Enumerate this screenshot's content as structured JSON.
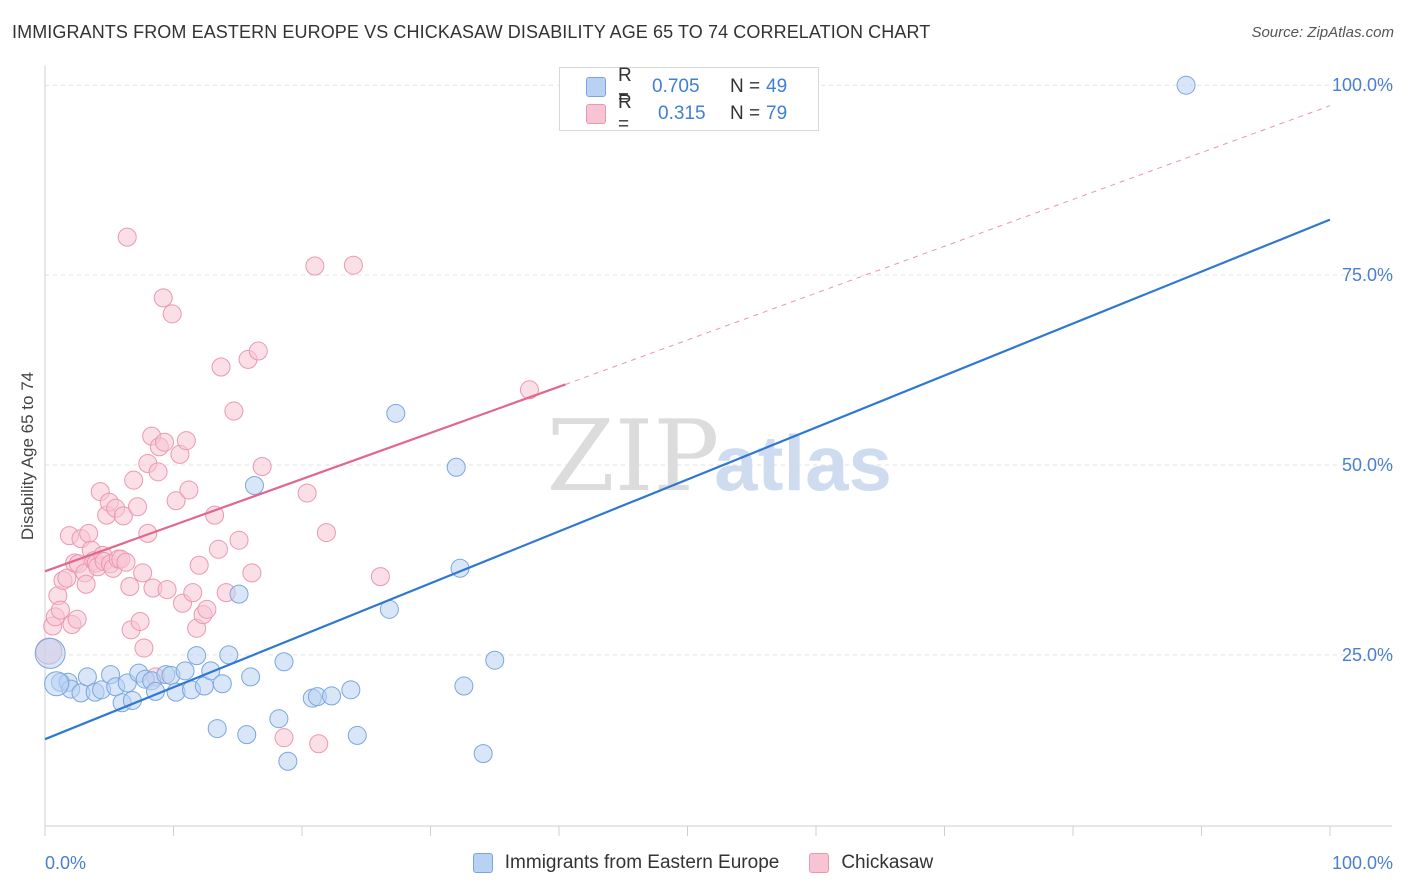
{
  "title": "IMMIGRANTS FROM EASTERN EUROPE VS CHICKASAW DISABILITY AGE 65 TO 74 CORRELATION CHART",
  "source": "Source: ZipAtlas.com",
  "watermark": {
    "zip": "ZIP",
    "atlas": "atlas"
  },
  "colors": {
    "blue_fill": "#b9d2f3",
    "blue_stroke": "#7aa6df",
    "blue_line": "#2f78d2",
    "pink_fill": "#f8c4d3",
    "pink_stroke": "#ec97b1",
    "pink_line": "#e16690",
    "axis_text": "#4a7fd0",
    "grid": "#e2e2e2"
  },
  "legend_top": [
    {
      "r_label": "R =",
      "r_value": "0.705",
      "n_label": "N =",
      "n_value": "49"
    },
    {
      "r_label": "R =",
      "r_value": "0.315",
      "n_label": "N =",
      "n_value": "79"
    }
  ],
  "chart_data": {
    "type": "scatter",
    "xlabel": "",
    "ylabel": "Disability Age 65 to 74",
    "xlim": [
      0,
      100
    ],
    "ylim": [
      3,
      102
    ],
    "x_tick_labels": [
      "0.0%",
      "100.0%"
    ],
    "y_tick_labels": [
      {
        "value": 100,
        "label": "100.0%"
      },
      {
        "value": 75,
        "label": "75.0%"
      },
      {
        "value": 50,
        "label": "50.0%"
      },
      {
        "value": 25,
        "label": "25.0%"
      }
    ],
    "grid": true,
    "legend_position": "bottom-center",
    "series": [
      {
        "name": "Immigrants from Eastern Europe",
        "color": "#b9d2f3",
        "r": 0.705,
        "n": 49,
        "trend": {
          "x": [
            0,
            100
          ],
          "y": [
            13.9,
            82.3
          ],
          "style": "solid"
        },
        "points": [
          [
            0.4,
            25.2
          ],
          [
            1.2,
            21.4
          ],
          [
            1.8,
            21.4
          ],
          [
            2.0,
            20.5
          ],
          [
            2.8,
            20.0
          ],
          [
            3.3,
            22.1
          ],
          [
            3.9,
            20.1
          ],
          [
            4.4,
            20.4
          ],
          [
            5.1,
            22.4
          ],
          [
            5.5,
            20.8
          ],
          [
            6.0,
            18.7
          ],
          [
            6.4,
            21.3
          ],
          [
            6.8,
            19.0
          ],
          [
            7.3,
            22.6
          ],
          [
            7.8,
            21.8
          ],
          [
            8.3,
            21.6
          ],
          [
            8.6,
            20.2
          ],
          [
            9.4,
            22.4
          ],
          [
            9.8,
            22.3
          ],
          [
            10.2,
            20.1
          ],
          [
            10.9,
            22.9
          ],
          [
            11.4,
            20.4
          ],
          [
            11.8,
            24.9
          ],
          [
            12.4,
            20.9
          ],
          [
            12.9,
            22.9
          ],
          [
            13.4,
            15.3
          ],
          [
            13.8,
            21.2
          ],
          [
            14.3,
            25.0
          ],
          [
            15.1,
            33.0
          ],
          [
            15.7,
            14.5
          ],
          [
            16.0,
            22.1
          ],
          [
            16.3,
            47.3
          ],
          [
            18.2,
            16.6
          ],
          [
            18.6,
            24.1
          ],
          [
            18.9,
            11.0
          ],
          [
            20.8,
            19.3
          ],
          [
            21.2,
            19.5
          ],
          [
            22.3,
            19.6
          ],
          [
            23.8,
            20.4
          ],
          [
            24.3,
            14.4
          ],
          [
            26.8,
            31.0
          ],
          [
            27.3,
            56.8
          ],
          [
            32.0,
            49.7
          ],
          [
            32.3,
            36.4
          ],
          [
            32.6,
            20.9
          ],
          [
            34.1,
            12.0
          ],
          [
            35.0,
            24.3
          ],
          [
            88.8,
            100.0
          ],
          [
            0.9,
            21.2
          ]
        ]
      },
      {
        "name": "Chickasaw",
        "color": "#f8c4d3",
        "r": 0.315,
        "n": 79,
        "trend": {
          "x": [
            0,
            40.5
          ],
          "y": [
            36.0,
            60.6
          ],
          "dash_to": [
            100,
            97.3
          ],
          "style": "solid-then-dashed"
        },
        "points": [
          [
            0.3,
            25.5
          ],
          [
            0.6,
            28.8
          ],
          [
            0.8,
            30.0
          ],
          [
            1.0,
            32.8
          ],
          [
            1.2,
            30.9
          ],
          [
            1.4,
            34.8
          ],
          [
            1.7,
            35.1
          ],
          [
            1.9,
            40.7
          ],
          [
            2.1,
            29.0
          ],
          [
            2.3,
            37.1
          ],
          [
            2.5,
            29.7
          ],
          [
            2.6,
            37.0
          ],
          [
            2.8,
            40.3
          ],
          [
            3.1,
            35.8
          ],
          [
            3.2,
            34.3
          ],
          [
            3.4,
            41.0
          ],
          [
            3.6,
            38.8
          ],
          [
            3.8,
            37.4
          ],
          [
            4.0,
            37.1
          ],
          [
            4.1,
            36.6
          ],
          [
            4.3,
            46.5
          ],
          [
            4.5,
            38.1
          ],
          [
            4.6,
            37.3
          ],
          [
            4.8,
            43.4
          ],
          [
            5.0,
            45.1
          ],
          [
            5.1,
            37.0
          ],
          [
            5.3,
            36.4
          ],
          [
            5.5,
            44.3
          ],
          [
            5.7,
            37.6
          ],
          [
            5.9,
            37.6
          ],
          [
            6.1,
            43.3
          ],
          [
            6.3,
            37.2
          ],
          [
            6.4,
            80.0
          ],
          [
            6.6,
            34.0
          ],
          [
            6.7,
            28.3
          ],
          [
            6.9,
            48.0
          ],
          [
            7.2,
            44.5
          ],
          [
            7.4,
            29.4
          ],
          [
            7.6,
            35.8
          ],
          [
            7.7,
            25.9
          ],
          [
            8.0,
            41.0
          ],
          [
            8.0,
            50.2
          ],
          [
            8.3,
            53.8
          ],
          [
            8.4,
            33.8
          ],
          [
            8.6,
            22.1
          ],
          [
            8.8,
            49.1
          ],
          [
            8.9,
            52.4
          ],
          [
            9.2,
            72.0
          ],
          [
            9.3,
            53.0
          ],
          [
            9.5,
            33.6
          ],
          [
            9.9,
            69.9
          ],
          [
            10.2,
            45.3
          ],
          [
            10.5,
            51.4
          ],
          [
            10.7,
            31.8
          ],
          [
            11.0,
            53.2
          ],
          [
            11.2,
            46.7
          ],
          [
            11.5,
            33.2
          ],
          [
            11.8,
            28.5
          ],
          [
            12.0,
            36.8
          ],
          [
            12.3,
            30.3
          ],
          [
            12.6,
            31.0
          ],
          [
            13.2,
            43.4
          ],
          [
            13.5,
            38.9
          ],
          [
            13.7,
            62.9
          ],
          [
            14.1,
            33.2
          ],
          [
            14.7,
            57.1
          ],
          [
            15.1,
            40.1
          ],
          [
            15.8,
            63.9
          ],
          [
            16.1,
            35.8
          ],
          [
            16.6,
            65.0
          ],
          [
            16.9,
            49.8
          ],
          [
            18.6,
            14.1
          ],
          [
            20.4,
            46.3
          ],
          [
            21.0,
            76.2
          ],
          [
            21.3,
            13.3
          ],
          [
            21.9,
            41.1
          ],
          [
            24.0,
            76.3
          ],
          [
            26.1,
            35.3
          ],
          [
            37.7,
            59.9
          ]
        ]
      }
    ]
  }
}
